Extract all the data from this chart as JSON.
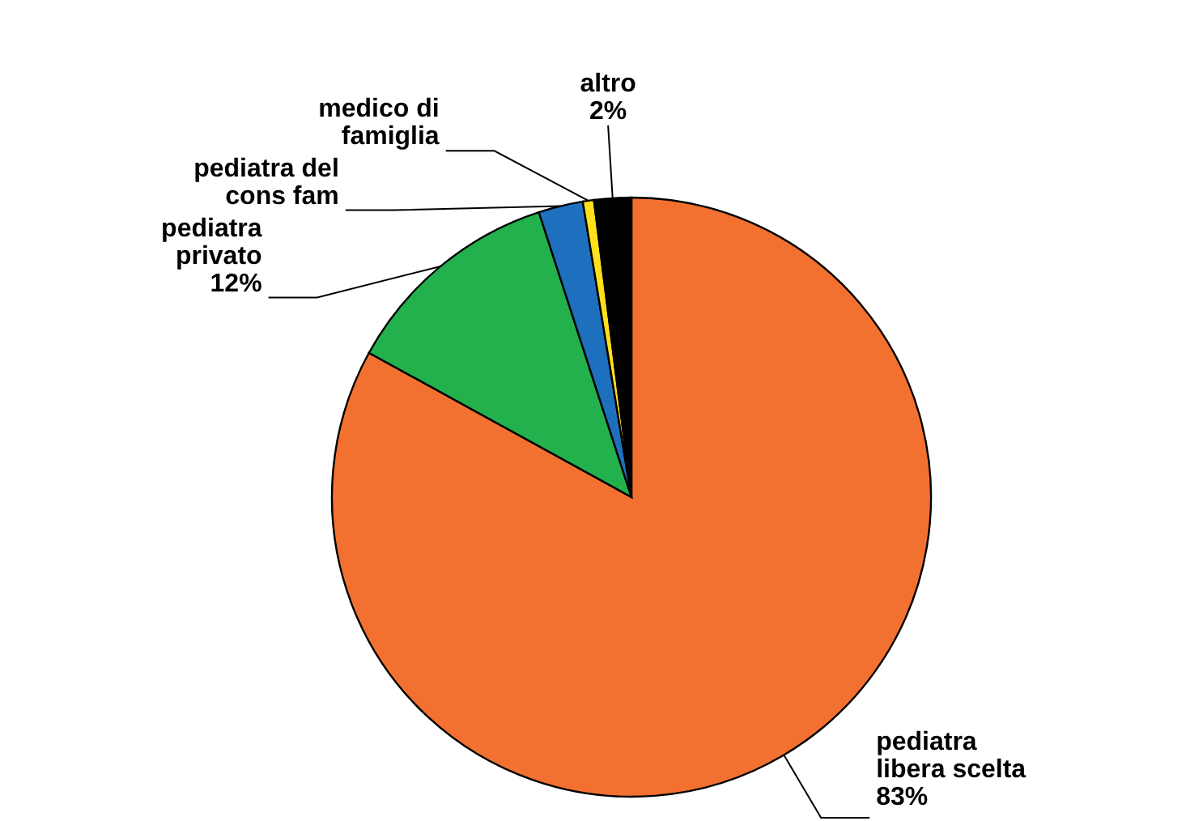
{
  "chart_data": {
    "type": "pie",
    "categories": [
      "pediatra libera scelta",
      "pediatra privato",
      "pediatra del cons fam",
      "medico di famiglia",
      "altro"
    ],
    "values": [
      83,
      12,
      2.4,
      0.6,
      2
    ],
    "colors": [
      "#f37130",
      "#22b14c",
      "#1f6fbf",
      "#ffe01a",
      "#000000"
    ],
    "value_labels": [
      "83%",
      "12%",
      null,
      null,
      "2%"
    ]
  }
}
